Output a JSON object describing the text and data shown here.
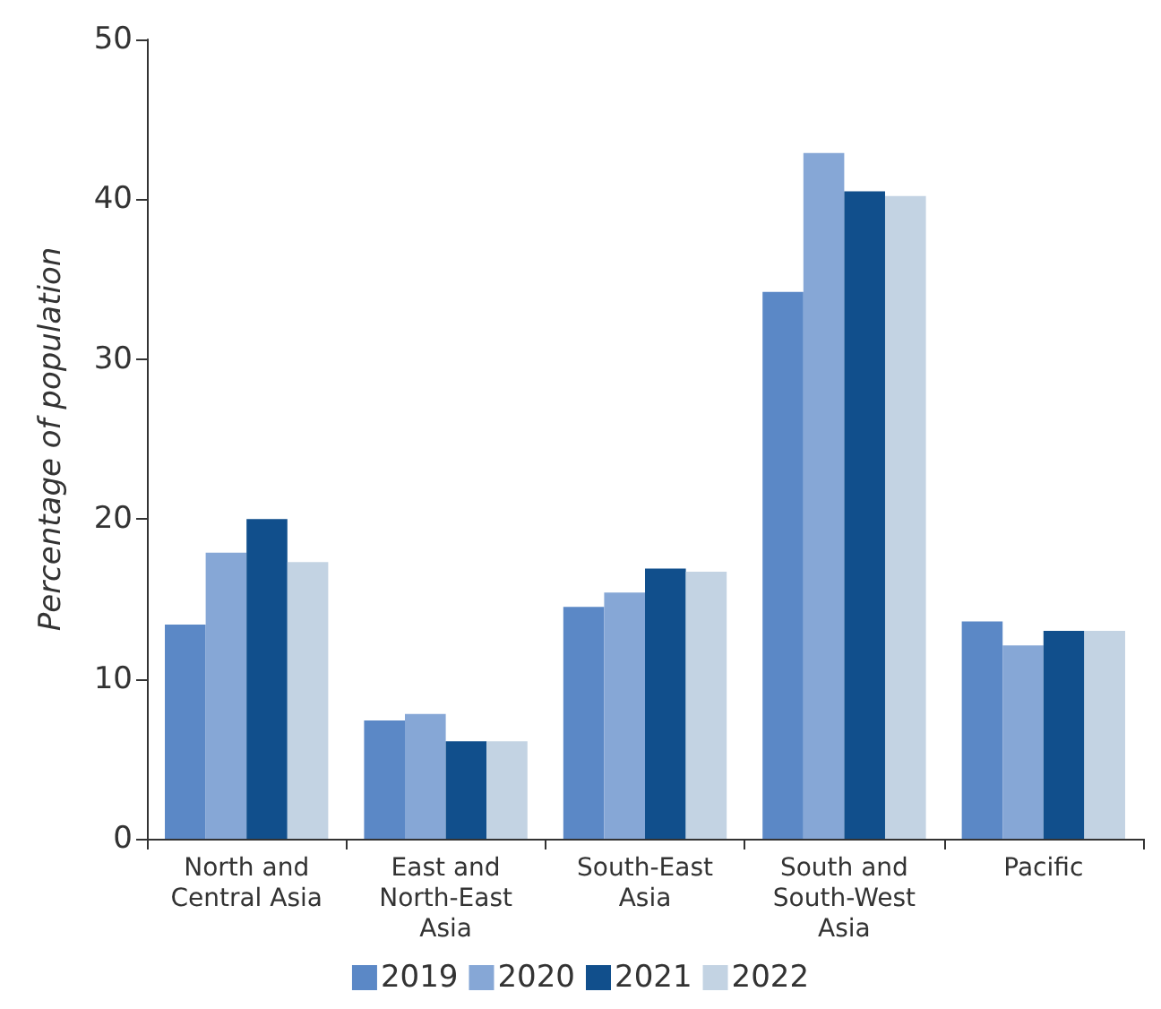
{
  "chart_data": {
    "type": "bar",
    "ylabel": "Percentage of population",
    "categories": [
      "North and\nCentral Asia",
      "East and\nNorth-East\nAsia",
      "South-East\nAsia",
      "South and\nSouth-West\nAsia",
      "Pacific"
    ],
    "series": [
      {
        "name": "2019",
        "color": "#5b88c6",
        "values": [
          13.4,
          7.4,
          14.5,
          34.2,
          13.6
        ]
      },
      {
        "name": "2020",
        "color": "#86a7d6",
        "values": [
          17.9,
          7.8,
          15.4,
          42.9,
          12.1
        ]
      },
      {
        "name": "2021",
        "color": "#114f8c",
        "values": [
          20.0,
          6.1,
          16.9,
          40.5,
          13.0
        ]
      },
      {
        "name": "2022",
        "color": "#c3d3e3",
        "values": [
          17.3,
          6.1,
          16.7,
          40.2,
          13.0
        ]
      }
    ],
    "ylim": [
      0,
      50
    ],
    "yticks": [
      0,
      10,
      20,
      30,
      40,
      50
    ],
    "grid": false,
    "legend": "bottom"
  }
}
